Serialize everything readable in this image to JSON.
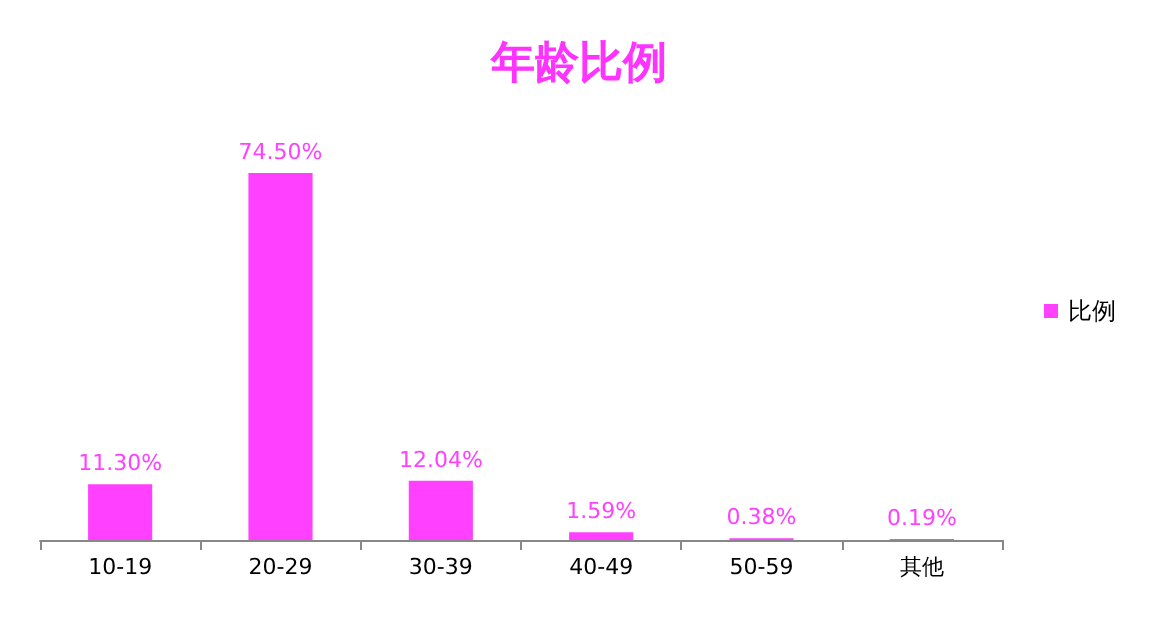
{
  "chart_data": {
    "type": "bar",
    "title": "年龄比例",
    "categories": [
      "10-19",
      "20-29",
      "30-39",
      "40-49",
      "50-59",
      "其他"
    ],
    "series": [
      {
        "name": "比例",
        "color": "#ff40ff",
        "values": [
          11.3,
          74.5,
          12.04,
          1.59,
          0.38,
          0.19
        ],
        "value_labels": [
          "11.30%",
          "74.50%",
          "12.04%",
          "1.59%",
          "0.38%",
          "0.19%"
        ]
      }
    ],
    "legend": "right"
  }
}
